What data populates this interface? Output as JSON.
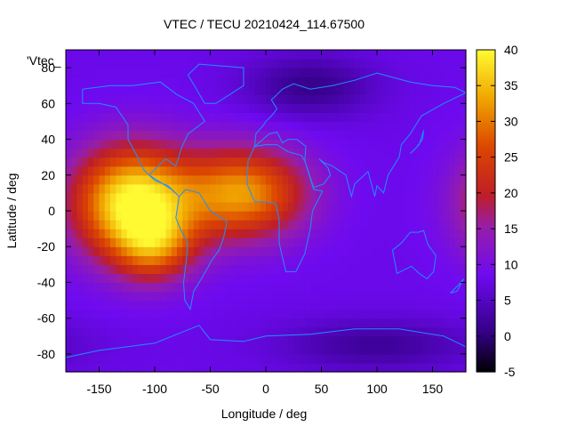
{
  "chart_data": {
    "type": "heatmap",
    "title": "VTEC / TECU 20210424_114.67500",
    "xlabel": "Longitude / deg",
    "ylabel": "Latitude / deg",
    "annotation": "'Vtec_",
    "xlim": [
      -180,
      180
    ],
    "ylim": [
      -90,
      90
    ],
    "x_ticks": [
      -150,
      -100,
      -50,
      0,
      50,
      100,
      150
    ],
    "y_ticks": [
      -80,
      -60,
      -40,
      -20,
      0,
      20,
      40,
      60,
      80
    ],
    "colorbar": {
      "range": [
        -5,
        40
      ],
      "ticks": [
        -5,
        0,
        5,
        10,
        15,
        20,
        25,
        30,
        35,
        40
      ]
    },
    "background_level": 8,
    "features": [
      {
        "lon": -120,
        "lat": 5,
        "peak": 32,
        "sigma_lon": 38,
        "sigma_lat": 22
      },
      {
        "lon": -100,
        "lat": -20,
        "peak": 14,
        "sigma_lon": 25,
        "sigma_lat": 14
      },
      {
        "lon": -20,
        "lat": 10,
        "peak": 24,
        "sigma_lon": 40,
        "sigma_lat": 18
      },
      {
        "lon": 40,
        "lat": 70,
        "peak": -7,
        "sigma_lon": 40,
        "sigma_lat": 12
      },
      {
        "lon": 100,
        "lat": -75,
        "peak": -6,
        "sigma_lon": 60,
        "sigma_lat": 10
      }
    ],
    "grid": false,
    "overlay": "coastlines"
  }
}
